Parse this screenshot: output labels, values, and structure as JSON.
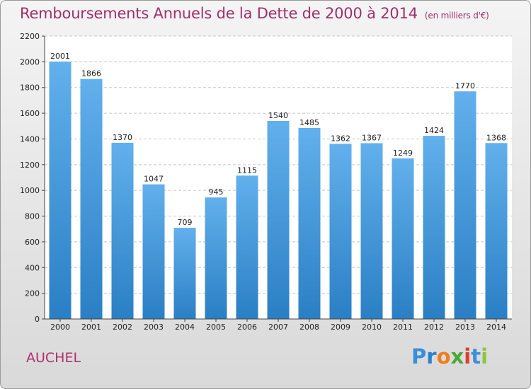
{
  "header": {
    "title": "Remboursements Annuels de la Dette de 2000 à 2014",
    "unit": "(en milliers d'€)"
  },
  "footer": {
    "commune": "AUCHEL",
    "logo_letters": [
      "P",
      "r",
      "o",
      "x",
      "i",
      "t",
      "i"
    ],
    "logo_colors": [
      "#3a8fd9",
      "#2b7fcf",
      "#ef7d1a",
      "#4aa83a",
      "#e23c2c",
      "#3a8fd9",
      "#8cc63e"
    ]
  },
  "colors": {
    "bar_light": "#62b0ec",
    "bar_dark": "#2a7fc4",
    "title": "#a0306a"
  },
  "chart_data": {
    "type": "bar",
    "categories": [
      "2000",
      "2001",
      "2002",
      "2003",
      "2004",
      "2005",
      "2006",
      "2007",
      "2008",
      "2009",
      "2010",
      "2011",
      "2012",
      "2013",
      "2014"
    ],
    "values": [
      2001,
      1866,
      1370,
      1047,
      709,
      945,
      1115,
      1540,
      1485,
      1362,
      1367,
      1249,
      1424,
      1770,
      1368
    ],
    "ylim": [
      0,
      2200
    ],
    "yticks": [
      0,
      200,
      400,
      600,
      800,
      1000,
      1200,
      1400,
      1600,
      1800,
      2000,
      2200
    ],
    "grid": true,
    "title": "Remboursements Annuels de la Dette de 2000 à 2014",
    "xlabel": "",
    "ylabel": ""
  }
}
